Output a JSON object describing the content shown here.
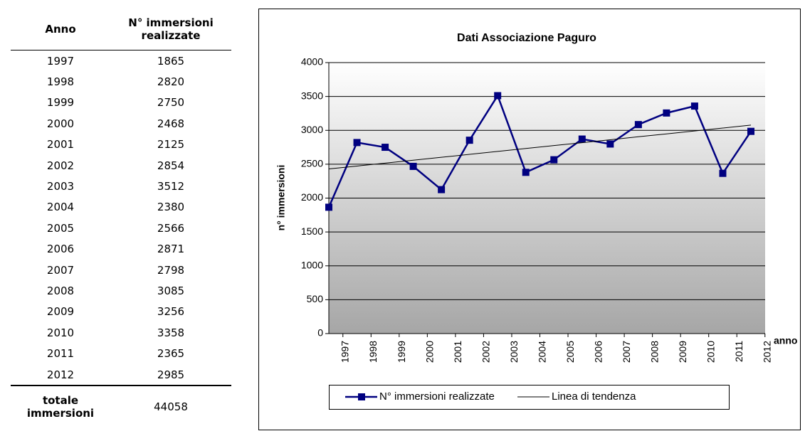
{
  "table": {
    "headers": [
      "Anno",
      "N° immersioni realizzate"
    ],
    "total_label": "totale immersioni",
    "total": 44058
  },
  "chart_data": {
    "type": "line",
    "title": "Dati Associazione Paguro",
    "x_label": "anno",
    "y_label": "n° immersioni",
    "categories": [
      "1997",
      "1998",
      "1999",
      "2000",
      "2001",
      "2002",
      "2003",
      "2004",
      "2005",
      "2006",
      "2007",
      "2008",
      "2009",
      "2010",
      "2011",
      "2012"
    ],
    "series": [
      {
        "name": "N° immersioni realizzate",
        "color": "#000080",
        "values": [
          1865,
          2820,
          2750,
          2468,
          2125,
          2854,
          3512,
          2380,
          2566,
          2871,
          2798,
          3085,
          3256,
          3358,
          2365,
          2985
        ]
      },
      {
        "name": "Linea di tendenza",
        "color": "#000000",
        "values": [
          2430,
          2473,
          2516,
          2559,
          2602,
          2646,
          2689,
          2732,
          2775,
          2818,
          2861,
          2905,
          2948,
          2991,
          3034,
          3077
        ]
      }
    ],
    "ylim": [
      0,
      4000
    ],
    "yticks": [
      0,
      500,
      1000,
      1500,
      2000,
      2500,
      3000,
      3500,
      4000
    ],
    "grid": true,
    "legend": "bottom"
  }
}
